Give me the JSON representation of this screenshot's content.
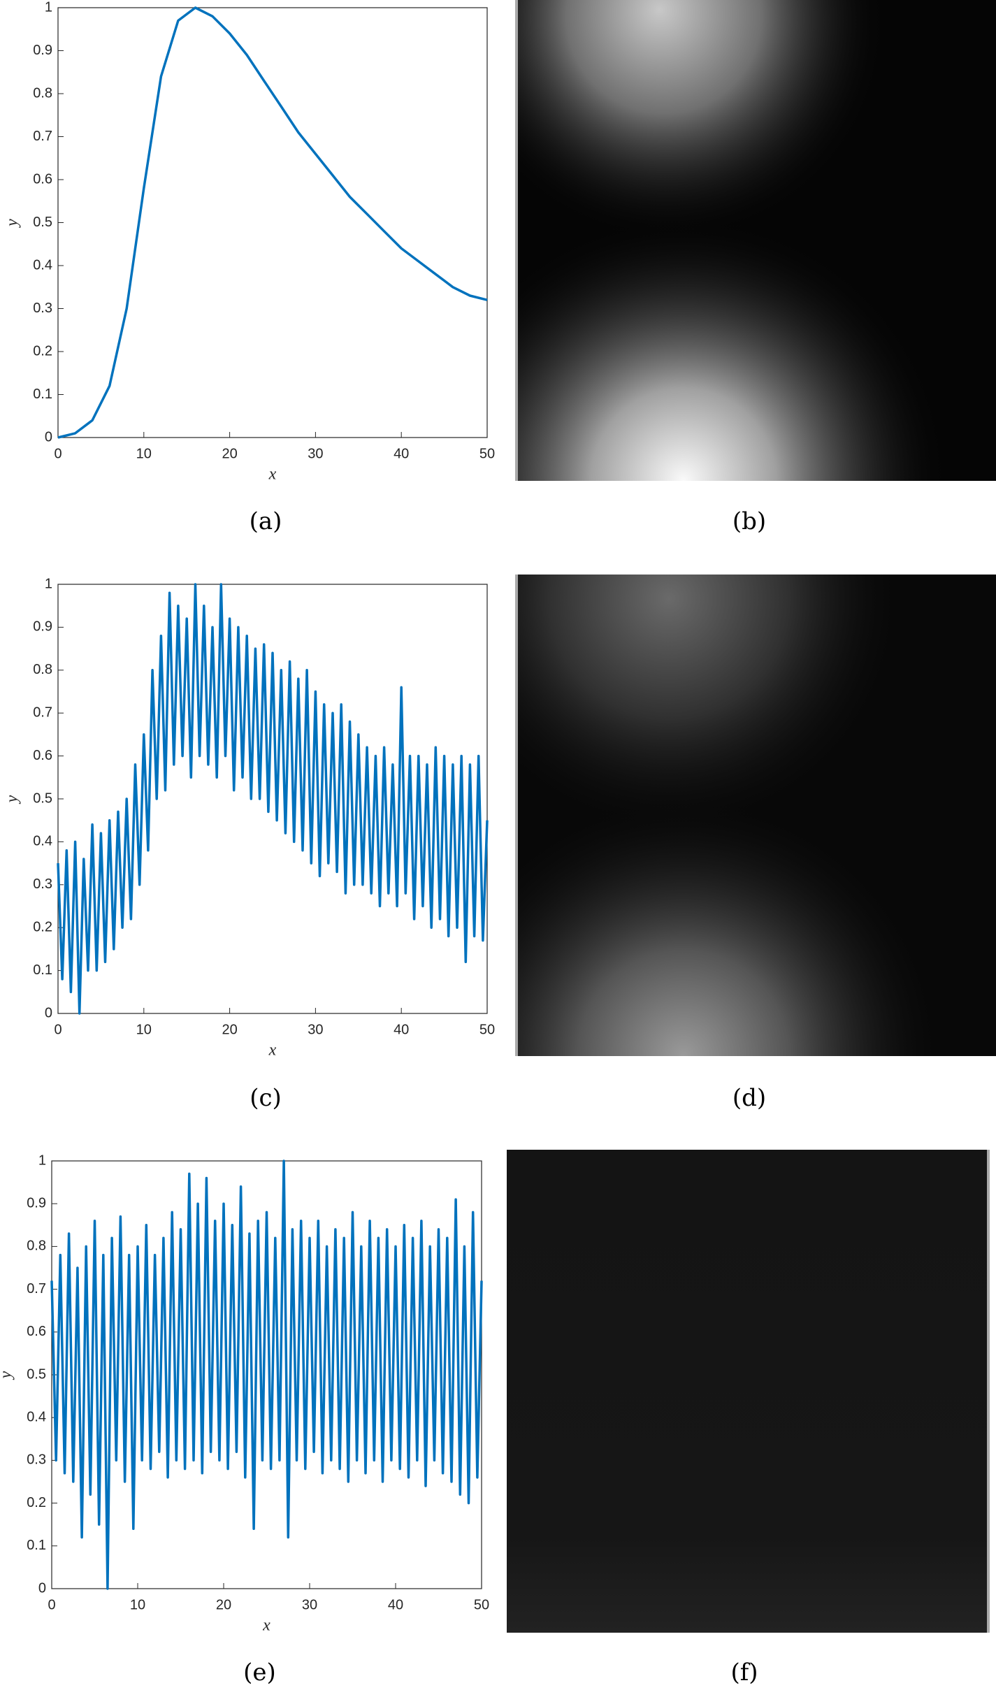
{
  "chart_data": [
    {
      "type": "line",
      "caption": "(a)",
      "xlabel": "x",
      "ylabel": "y",
      "color": "#0072bd",
      "xlim": [
        0,
        50
      ],
      "ylim": [
        0,
        1
      ],
      "xticks": [
        0,
        10,
        20,
        30,
        40,
        50
      ],
      "yticks": [
        0,
        0.1,
        0.2,
        0.3,
        0.4,
        0.5,
        0.6,
        0.7,
        0.8,
        0.9,
        1
      ],
      "grid": false,
      "x": [
        0,
        2,
        4,
        6,
        8,
        10,
        12,
        14,
        16,
        18,
        20,
        22,
        24,
        26,
        28,
        30,
        32,
        34,
        36,
        38,
        40,
        42,
        44,
        46,
        48,
        50
      ],
      "values": [
        0,
        0.01,
        0.04,
        0.12,
        0.3,
        0.58,
        0.84,
        0.97,
        1.0,
        0.98,
        0.94,
        0.89,
        0.83,
        0.77,
        0.71,
        0.66,
        0.61,
        0.56,
        0.52,
        0.48,
        0.44,
        0.41,
        0.38,
        0.35,
        0.33,
        0.32
      ]
    },
    {
      "type": "line",
      "caption": "(c)",
      "xlabel": "x",
      "ylabel": "y",
      "color": "#0072bd",
      "xlim": [
        0,
        50
      ],
      "ylim": [
        0,
        1
      ],
      "xticks": [
        0,
        10,
        20,
        30,
        40,
        50
      ],
      "yticks": [
        0,
        0.1,
        0.2,
        0.3,
        0.4,
        0.5,
        0.6,
        0.7,
        0.8,
        0.9,
        1
      ],
      "grid": false,
      "x": [
        0,
        0.5,
        1,
        1.5,
        2,
        2.5,
        3,
        3.5,
        4,
        4.5,
        5,
        5.5,
        6,
        6.5,
        7,
        7.5,
        8,
        8.5,
        9,
        9.5,
        10,
        10.5,
        11,
        11.5,
        12,
        12.5,
        13,
        13.5,
        14,
        14.5,
        15,
        15.5,
        16,
        16.5,
        17,
        17.5,
        18,
        18.5,
        19,
        19.5,
        20,
        20.5,
        21,
        21.5,
        22,
        22.5,
        23,
        23.5,
        24,
        24.5,
        25,
        25.5,
        26,
        26.5,
        27,
        27.5,
        28,
        28.5,
        29,
        29.5,
        30,
        30.5,
        31,
        31.5,
        32,
        32.5,
        33,
        33.5,
        34,
        34.5,
        35,
        35.5,
        36,
        36.5,
        37,
        37.5,
        38,
        38.5,
        39,
        39.5,
        40,
        40.5,
        41,
        41.5,
        42,
        42.5,
        43,
        43.5,
        44,
        44.5,
        45,
        45.5,
        46,
        46.5,
        47,
        47.5,
        48,
        48.5,
        49,
        49.5,
        50
      ],
      "values": [
        0.35,
        0.08,
        0.38,
        0.05,
        0.4,
        0.0,
        0.36,
        0.1,
        0.44,
        0.1,
        0.42,
        0.12,
        0.45,
        0.15,
        0.47,
        0.2,
        0.5,
        0.22,
        0.58,
        0.3,
        0.65,
        0.38,
        0.8,
        0.5,
        0.88,
        0.52,
        0.98,
        0.58,
        0.95,
        0.6,
        0.92,
        0.55,
        1.0,
        0.6,
        0.95,
        0.58,
        0.9,
        0.55,
        1.0,
        0.6,
        0.92,
        0.52,
        0.9,
        0.55,
        0.88,
        0.5,
        0.85,
        0.5,
        0.86,
        0.47,
        0.84,
        0.45,
        0.8,
        0.42,
        0.82,
        0.4,
        0.78,
        0.38,
        0.8,
        0.35,
        0.75,
        0.32,
        0.72,
        0.35,
        0.7,
        0.33,
        0.72,
        0.28,
        0.68,
        0.3,
        0.65,
        0.3,
        0.62,
        0.28,
        0.6,
        0.25,
        0.62,
        0.28,
        0.58,
        0.25,
        0.76,
        0.28,
        0.6,
        0.22,
        0.6,
        0.25,
        0.58,
        0.2,
        0.62,
        0.22,
        0.6,
        0.18,
        0.58,
        0.2,
        0.6,
        0.12,
        0.58,
        0.18,
        0.6,
        0.17,
        0.45
      ]
    },
    {
      "type": "line",
      "caption": "(e)",
      "xlabel": "x",
      "ylabel": "y",
      "color": "#0072bd",
      "xlim": [
        0,
        50
      ],
      "ylim": [
        0,
        1
      ],
      "xticks": [
        0,
        10,
        20,
        30,
        40,
        50
      ],
      "yticks": [
        0,
        0.1,
        0.2,
        0.3,
        0.4,
        0.5,
        0.6,
        0.7,
        0.8,
        0.9,
        1
      ],
      "grid": false,
      "x": [
        0,
        0.5,
        1,
        1.5,
        2,
        2.5,
        3,
        3.5,
        4,
        4.5,
        5,
        5.5,
        6,
        6.5,
        7,
        7.5,
        8,
        8.5,
        9,
        9.5,
        10,
        10.5,
        11,
        11.5,
        12,
        12.5,
        13,
        13.5,
        14,
        14.5,
        15,
        15.5,
        16,
        16.5,
        17,
        17.5,
        18,
        18.5,
        19,
        19.5,
        20,
        20.5,
        21,
        21.5,
        22,
        22.5,
        23,
        23.5,
        24,
        24.5,
        25,
        25.5,
        26,
        26.5,
        27,
        27.5,
        28,
        28.5,
        29,
        29.5,
        30,
        30.5,
        31,
        31.5,
        32,
        32.5,
        33,
        33.5,
        34,
        34.5,
        35,
        35.5,
        36,
        36.5,
        37,
        37.5,
        38,
        38.5,
        39,
        39.5,
        40,
        40.5,
        41,
        41.5,
        42,
        42.5,
        43,
        43.5,
        44,
        44.5,
        45,
        45.5,
        46,
        46.5,
        47,
        47.5,
        48,
        48.5,
        49,
        49.5,
        50
      ],
      "values": [
        0.72,
        0.3,
        0.78,
        0.27,
        0.83,
        0.25,
        0.75,
        0.12,
        0.8,
        0.22,
        0.86,
        0.15,
        0.78,
        0.0,
        0.82,
        0.3,
        0.87,
        0.25,
        0.78,
        0.14,
        0.8,
        0.3,
        0.85,
        0.28,
        0.78,
        0.32,
        0.82,
        0.26,
        0.88,
        0.3,
        0.84,
        0.28,
        0.97,
        0.3,
        0.9,
        0.27,
        0.96,
        0.32,
        0.86,
        0.3,
        0.9,
        0.28,
        0.85,
        0.32,
        0.94,
        0.26,
        0.83,
        0.14,
        0.86,
        0.3,
        0.88,
        0.28,
        0.82,
        0.3,
        1.0,
        0.12,
        0.84,
        0.3,
        0.86,
        0.28,
        0.82,
        0.32,
        0.86,
        0.27,
        0.8,
        0.3,
        0.84,
        0.28,
        0.82,
        0.25,
        0.88,
        0.3,
        0.8,
        0.27,
        0.86,
        0.3,
        0.82,
        0.25,
        0.84,
        0.3,
        0.8,
        0.28,
        0.85,
        0.26,
        0.82,
        0.3,
        0.86,
        0.24,
        0.8,
        0.3,
        0.84,
        0.27,
        0.82,
        0.25,
        0.91,
        0.22,
        0.8,
        0.2,
        0.88,
        0.26,
        0.72
      ]
    }
  ],
  "images": [
    {
      "caption": "(b)"
    },
    {
      "caption": "(d)"
    },
    {
      "caption": "(f)"
    }
  ]
}
